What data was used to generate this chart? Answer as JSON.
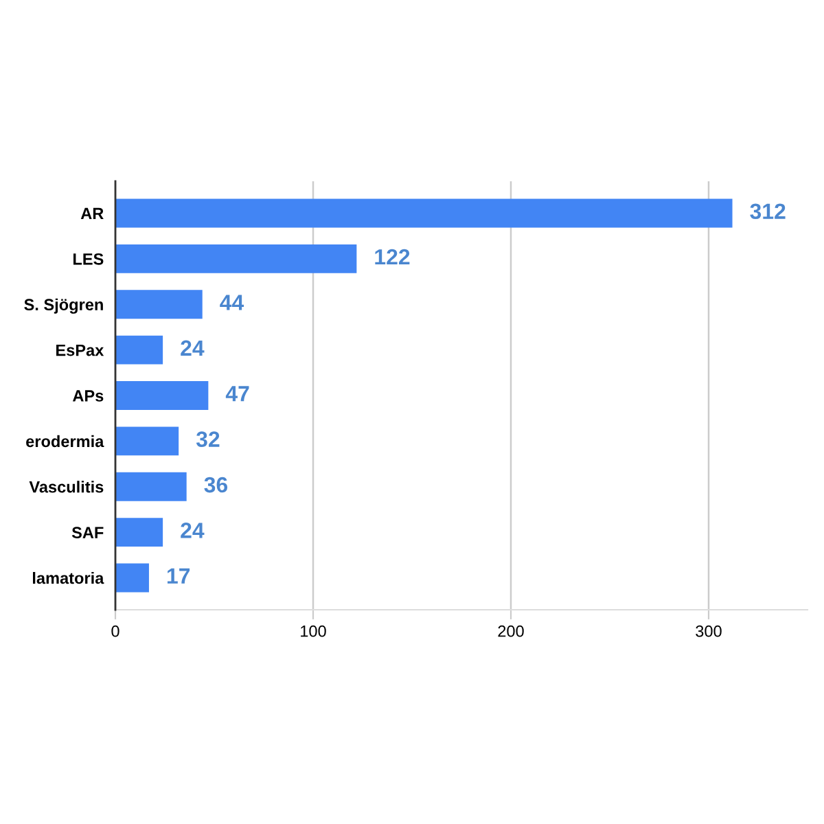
{
  "chart_data": {
    "type": "bar",
    "orientation": "horizontal",
    "categories": [
      "AR",
      "LES",
      "S. Sjögren",
      "EsPax",
      "APs",
      "erodermia",
      "Vasculitis",
      "SAF",
      "lamatoria"
    ],
    "values": [
      312,
      122,
      44,
      24,
      47,
      32,
      36,
      24,
      17
    ],
    "color": "#4285f4",
    "xlim": [
      0,
      350
    ],
    "xticks": [
      0,
      100,
      200,
      300
    ],
    "grid": "x",
    "data_labels": true
  }
}
